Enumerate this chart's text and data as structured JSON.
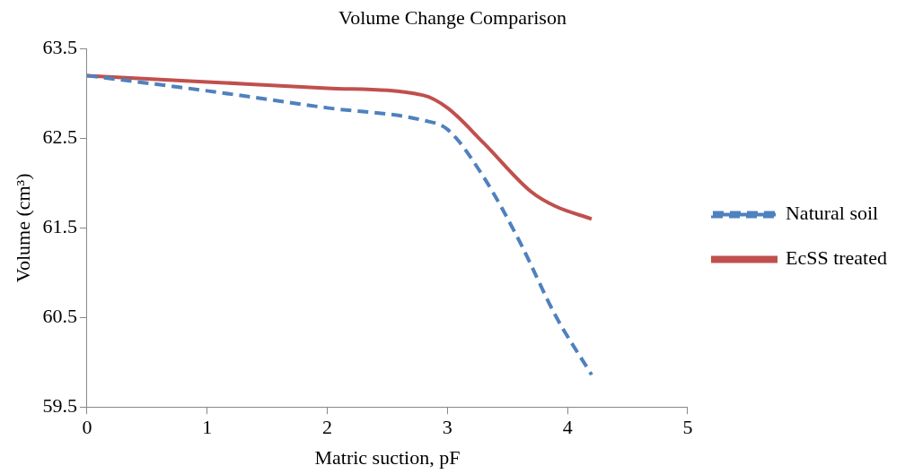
{
  "chart_data": {
    "type": "line",
    "title": "Volume Change Comparison",
    "xlabel": "Matric suction, pF",
    "ylabel": "Volume (cm³)",
    "xlim": [
      0,
      5
    ],
    "xticks": [
      0,
      1,
      2,
      3,
      4,
      5
    ],
    "ylim": [
      59.5,
      63.5
    ],
    "yticks": [
      59.5,
      60.5,
      61.5,
      62.5,
      63.5
    ],
    "grid": false,
    "legend": "right",
    "marker": "none",
    "series": [
      {
        "name": "Natural soil",
        "color": "#4f81bd",
        "line_style": "dashed",
        "x": [
          0,
          1,
          2,
          2.8,
          3,
          3.3,
          3.6,
          3.9,
          4.2
        ],
        "values": [
          63.2,
          63.03,
          62.84,
          62.7,
          62.6,
          62.07,
          61.35,
          60.52,
          59.86
        ]
      },
      {
        "name": "EcSS treated",
        "color": "#c0504d",
        "line_style": "solid",
        "x": [
          0,
          1,
          2,
          2.8,
          3,
          3.3,
          3.7,
          3.9,
          4.2
        ],
        "values": [
          63.2,
          63.13,
          63.06,
          62.98,
          62.84,
          62.45,
          61.9,
          61.74,
          61.6
        ]
      }
    ]
  }
}
